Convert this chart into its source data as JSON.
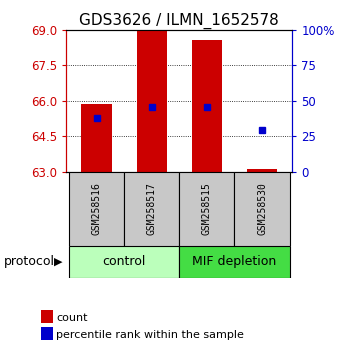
{
  "title": "GDS3626 / ILMN_1652578",
  "samples": [
    "GSM258516",
    "GSM258517",
    "GSM258515",
    "GSM258530"
  ],
  "bar_tops": [
    65.85,
    69.0,
    68.6,
    63.13
  ],
  "bar_bottoms": [
    63.0,
    63.0,
    63.0,
    63.0
  ],
  "percentile_values": [
    65.28,
    65.75,
    65.75,
    64.78
  ],
  "ylim_left": [
    63,
    69
  ],
  "ylim_right": [
    0,
    100
  ],
  "yticks_left": [
    63,
    64.5,
    66,
    67.5,
    69
  ],
  "yticks_right": [
    0,
    25,
    50,
    75,
    100
  ],
  "bar_color": "#cc0000",
  "percentile_color": "#0000cc",
  "groups": [
    {
      "label": "control",
      "start": 0,
      "end": 2,
      "color": "#bbffbb"
    },
    {
      "label": "MIF depletion",
      "start": 2,
      "end": 4,
      "color": "#44dd44"
    }
  ],
  "protocol_label": "protocol",
  "legend_count_label": "count",
  "legend_pct_label": "percentile rank within the sample",
  "bar_width": 0.55,
  "title_fontsize": 11,
  "tick_fontsize": 8.5,
  "sample_fontsize": 7,
  "group_fontsize": 9,
  "legend_fontsize": 8
}
